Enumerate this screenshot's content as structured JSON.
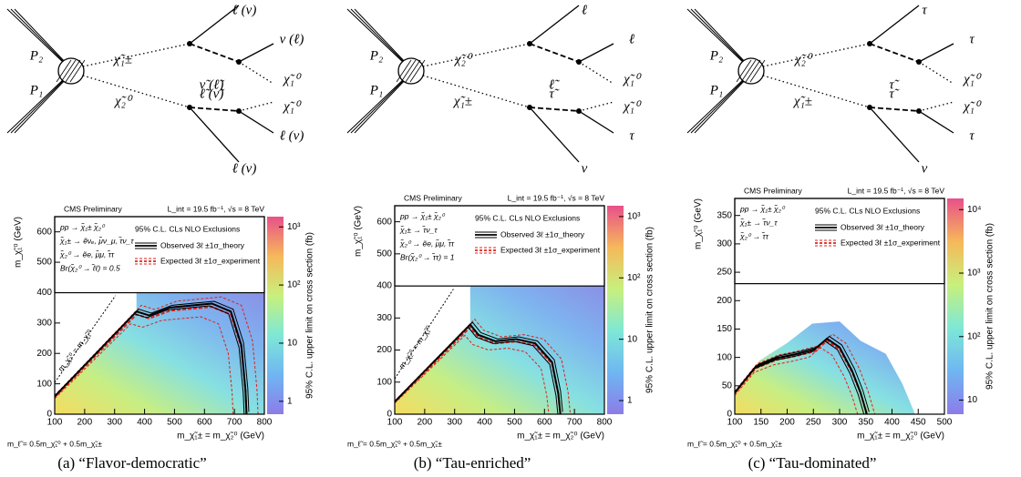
{
  "panels": [
    {
      "diagram": {
        "labels": [
          "P₂",
          "P₁",
          "χ̃₁±",
          "χ̃₂⁰",
          "ℓ (ν)",
          "ν (ℓ)",
          "ν̃ (ℓ̃)",
          "χ̃₁⁰",
          "ℓ̃ (ν̃)",
          "χ̃₁⁰",
          "ℓ (ν)",
          "ℓ (ν)"
        ]
      },
      "plot": {
        "experiment": "CMS Preliminary",
        "lumi": "L_int = 19.5 fb⁻¹, √s = 8 TeV",
        "process": [
          "pp → χ̃₁± χ̃₂⁰",
          "χ̃₁± → ẽνₑ, μ̃ν_μ, τ̃ν_τ",
          "χ̃₂⁰ → ẽe, μ̃μ, τ̃τ",
          "Br(χ̃₂⁰ → ℓ̃ℓ) = 0.5"
        ],
        "legend_title": "95% C.L. CLs NLO Exclusions",
        "legend": [
          {
            "name": "Observed 3ℓ ±1σ_theory",
            "color": "#000000"
          },
          {
            "name": "Expected 3ℓ ±1σ_experiment",
            "color": "#e0201b"
          }
        ],
        "diagonal_label": "m_χ̃₂⁰ = m_χ̃₁⁰",
        "xlabel": "m_χ̃₁± = m_χ̃₂⁰ (GeV)",
        "ylabel": "m_χ̃₁⁰ (GeV)",
        "zlabel": "95% C.L. upper limit on cross section (fb)",
        "mass_relation": "m_ℓ̃ = 0.5m_χ̃₁⁰ + 0.5m_χ̃₁±",
        "xlim": [
          100,
          800
        ],
        "ylim": [
          0,
          650
        ],
        "xticks": [
          100,
          200,
          300,
          400,
          500,
          600,
          700,
          800
        ],
        "yticks": [
          0,
          100,
          200,
          300,
          400,
          500,
          600
        ],
        "zlim": [
          0.6,
          1500
        ],
        "zticks": [
          1,
          10,
          {
            "value": 100,
            "label": "10²"
          },
          {
            "value": 1000,
            "label": "10³"
          }
        ]
      },
      "caption": "(a) “Flavor-democratic”"
    },
    {
      "diagram": {
        "labels": [
          "P₂",
          "P₁",
          "χ̃₂⁰",
          "χ̃₁±",
          "ℓ",
          "ℓ",
          "ℓ̃",
          "χ̃₁⁰",
          "τ̃",
          "χ̃₁⁰",
          "τ",
          "ν"
        ]
      },
      "plot": {
        "experiment": "CMS Preliminary",
        "lumi": "L_int = 19.5 fb⁻¹, √s = 8 TeV",
        "process": [
          "pp → χ̃₁± χ̃₂⁰",
          "χ̃₁± → τ̃ν_τ",
          "χ̃₂⁰ → ẽe, μ̃μ, τ̃τ",
          "Br(χ̃₂⁰ → τ̃τ) = 1"
        ],
        "legend_title": "95% C.L. CLs NLO Exclusions",
        "legend": [
          {
            "name": "Observed 3ℓ ±1σ_theory",
            "color": "#000000"
          },
          {
            "name": "Expected 3ℓ ±1σ_experiment",
            "color": "#e0201b"
          }
        ],
        "diagonal_label": "m_χ̃₂⁰ = m_χ̃₁⁰",
        "xlabel": "m_χ̃₁± = m_χ̃₂⁰ (GeV)",
        "ylabel": "m_χ̃₁⁰ (GeV)",
        "zlabel": "95% C.L. upper limit on cross section (fb)",
        "mass_relation": "m_ℓ̃ = 0.5m_χ̃₁⁰ + 0.5m_χ̃₁±",
        "xlim": [
          100,
          800
        ],
        "ylim": [
          0,
          650
        ],
        "xticks": [
          100,
          200,
          300,
          400,
          500,
          600,
          700,
          800
        ],
        "yticks": [
          0,
          100,
          200,
          300,
          400,
          500,
          600
        ],
        "zlim": [
          0.6,
          1500
        ],
        "zticks": [
          1,
          10,
          {
            "value": 100,
            "label": "10²"
          },
          {
            "value": 1000,
            "label": "10³"
          }
        ]
      },
      "caption": "(b) “Tau-enriched”"
    },
    {
      "diagram": {
        "labels": [
          "P₂",
          "P₁",
          "χ̃₂⁰",
          "χ̃₁±",
          "τ",
          "τ",
          "τ̃",
          "χ̃₁⁰",
          "τ̃",
          "χ̃₁⁰",
          "τ",
          "ν"
        ]
      },
      "plot": {
        "experiment": "CMS Preliminary",
        "lumi": "L_int = 19.5 fb⁻¹, √s = 8 TeV",
        "process": [
          "pp → χ̃₁± χ̃₂⁰",
          "χ̃₁± → τ̃ν_τ",
          "χ̃₂⁰ → τ̃τ"
        ],
        "legend_title": "95% C.L. CLs NLO Exclusions",
        "legend": [
          {
            "name": "Observed 3ℓ ±1σ_theory",
            "color": "#000000"
          },
          {
            "name": "Expected 3ℓ ±1σ_experiment",
            "color": "#e0201b"
          }
        ],
        "xlabel": "m_χ̃₁± = m_χ̃₂⁰ (GeV)",
        "ylabel": "m_χ̃₁⁰ (GeV)",
        "zlabel": "95% C.L. upper limit on cross section (fb)",
        "mass_relation": "m_ℓ̃ = 0.5m_χ̃₁⁰ + 0.5m_χ̃₁±",
        "xlim": [
          100,
          500
        ],
        "ylim": [
          0,
          380
        ],
        "xticks": [
          100,
          150,
          200,
          250,
          300,
          350,
          400,
          450,
          500
        ],
        "yticks": [
          0,
          50,
          100,
          150,
          200,
          250,
          300,
          350
        ],
        "zlim": [
          6,
          15000
        ],
        "zticks": [
          10,
          {
            "value": 100,
            "label": "10²"
          },
          {
            "value": 1000,
            "label": "10³"
          },
          {
            "value": 10000,
            "label": "10⁴"
          }
        ]
      },
      "caption": "(c) “Tau-dominated”"
    }
  ]
}
